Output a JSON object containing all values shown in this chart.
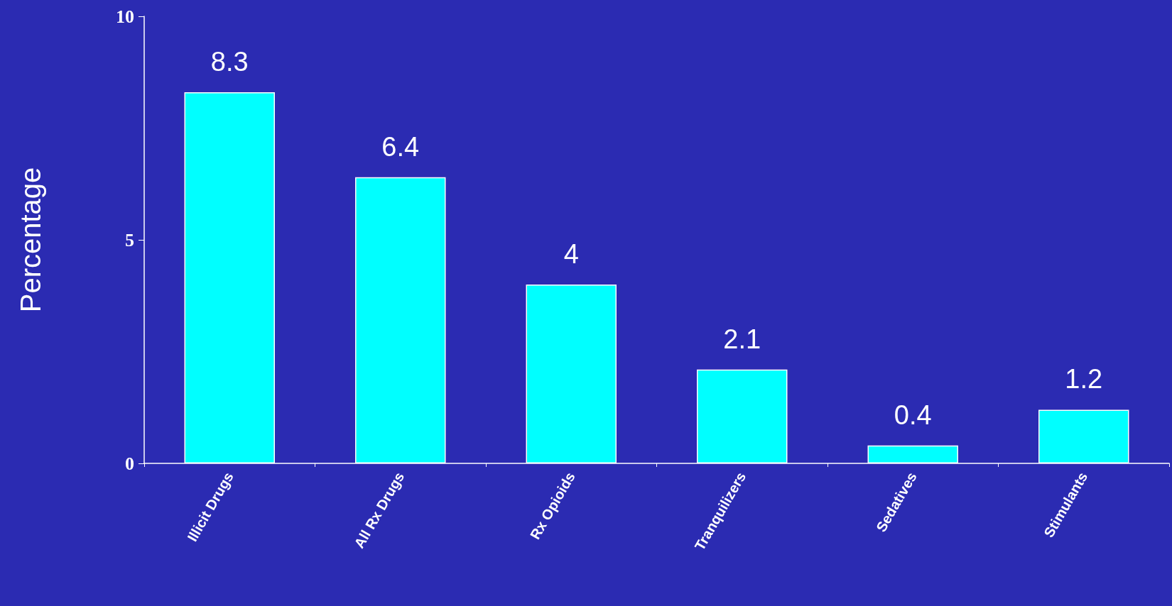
{
  "chart_data": {
    "type": "bar",
    "ylabel": "Percentage",
    "categories": [
      "Illicit Drugs",
      "All Rx Drugs",
      "Rx Opioids",
      "Tranquilizers",
      "Sedatives",
      "Stimulants"
    ],
    "values": [
      8.3,
      6.4,
      4,
      2.1,
      0.4,
      1.2
    ],
    "color": "#00ffff",
    "ylim": [
      0,
      10
    ],
    "yticks": [
      0,
      5,
      10
    ],
    "grid": false,
    "data_labels": true
  }
}
